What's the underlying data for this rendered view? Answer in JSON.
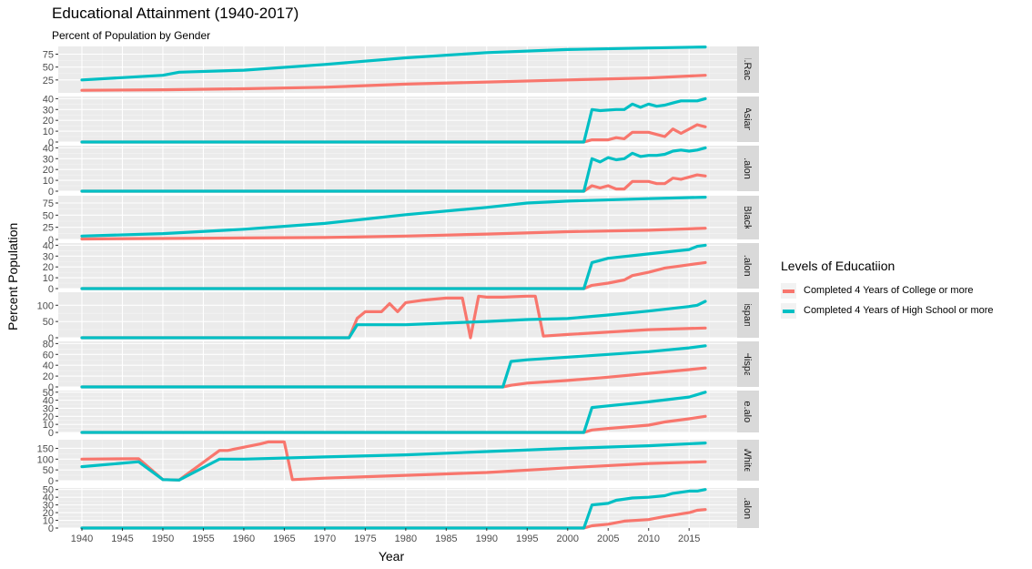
{
  "chart_data": {
    "type": "line",
    "title": "Educational Attainment (1940-2017)",
    "subtitle": "Percent of Population by Gender",
    "xlabel": "Year",
    "ylabel": "Percent Population",
    "xlim": [
      1940,
      2017
    ],
    "x_ticks": [
      1940,
      1945,
      1950,
      1955,
      1960,
      1965,
      1970,
      1975,
      1980,
      1985,
      1990,
      1995,
      2000,
      2005,
      2010,
      2015
    ],
    "legend": {
      "title": "Levels of Educatiion",
      "position": "right",
      "entries": [
        {
          "label": "Completed 4 Years of College or more",
          "color": "#F8766D"
        },
        {
          "label": "Completed 4 Years of High School or more",
          "color": "#00BFC4"
        }
      ]
    },
    "panels": [
      {
        "strip": "All.Races",
        "ylim": [
          0,
          90
        ],
        "yticks": [
          25,
          50,
          75
        ],
        "series": [
          {
            "name": "Completed 4 Years of College or more",
            "x": [
              1940,
              1950,
              1960,
              1970,
              1980,
              1990,
              2000,
              2010,
              2017
            ],
            "y": [
              5,
              6,
              8,
              11,
              17,
              21,
              25,
              29,
              34
            ]
          },
          {
            "name": "Completed 4 Years of High School or more",
            "x": [
              1940,
              1950,
              1952,
              1960,
              1970,
              1980,
              1990,
              2000,
              2010,
              2017
            ],
            "y": [
              25,
              34,
              40,
              44,
              55,
              68,
              78,
              84,
              87,
              89
            ]
          }
        ]
      },
      {
        "strip": "Asian",
        "ylim": [
          0,
          42
        ],
        "yticks": [
          0,
          10,
          20,
          30,
          40
        ],
        "series": [
          {
            "name": "Completed 4 Years of College or more",
            "x": [
              1940,
              2002,
              2003,
              2005,
              2006,
              2007,
              2008,
              2010,
              2011,
              2012,
              2013,
              2014,
              2016,
              2017
            ],
            "y": [
              0,
              0,
              2,
              2,
              4,
              3,
              9,
              9,
              7,
              5,
              12,
              8,
              16,
              14
            ]
          },
          {
            "name": "Completed 4 Years of High School or more",
            "x": [
              1940,
              2002,
              2003,
              2004,
              2006,
              2007,
              2008,
              2009,
              2010,
              2011,
              2012,
              2013,
              2014,
              2015,
              2016,
              2017
            ],
            "y": [
              0,
              0,
              30,
              29,
              30,
              30,
              35,
              32,
              35,
              33,
              34,
              36,
              38,
              38,
              38,
              40
            ]
          }
        ]
      },
      {
        "strip": "Asian.alone.or...",
        "ylim": [
          0,
          42
        ],
        "yticks": [
          0,
          10,
          20,
          30,
          40
        ],
        "series": [
          {
            "name": "Completed 4 Years of College or more",
            "x": [
              1940,
              2002,
              2003,
              2004,
              2005,
              2006,
              2007,
              2008,
              2010,
              2011,
              2012,
              2013,
              2014,
              2016,
              2017
            ],
            "y": [
              0,
              0,
              5,
              3,
              5,
              2,
              2,
              9,
              9,
              7,
              7,
              12,
              11,
              15,
              14
            ]
          },
          {
            "name": "Completed 4 Years of High School or more",
            "x": [
              1940,
              2002,
              2003,
              2004,
              2005,
              2006,
              2007,
              2008,
              2009,
              2010,
              2011,
              2012,
              2013,
              2014,
              2015,
              2016,
              2017
            ],
            "y": [
              0,
              0,
              30,
              27,
              31,
              29,
              30,
              35,
              32,
              33,
              33,
              34,
              37,
              38,
              37,
              38,
              40
            ]
          }
        ]
      },
      {
        "strip": "Black",
        "ylim": [
          0,
          90
        ],
        "yticks": [
          0,
          25,
          50,
          75
        ],
        "series": [
          {
            "name": "Completed 4 Years of College or more",
            "x": [
              1940,
              1960,
              1970,
              1980,
              1990,
              2000,
              2010,
              2017
            ],
            "y": [
              1,
              3,
              4,
              7,
              11,
              16,
              19,
              23
            ]
          },
          {
            "name": "Completed 4 Years of High School or more",
            "x": [
              1940,
              1950,
              1960,
              1970,
              1975,
              1980,
              1990,
              1995,
              2000,
              2010,
              2017
            ],
            "y": [
              7,
              12,
              21,
              33,
              42,
              51,
              66,
              75,
              79,
              84,
              87
            ]
          }
        ]
      },
      {
        "strip": "Black.alone.or...",
        "ylim": [
          0,
          42
        ],
        "yticks": [
          0,
          10,
          20,
          30,
          40
        ],
        "series": [
          {
            "name": "Completed 4 Years of College or more",
            "x": [
              1940,
              2002,
              2003,
              2005,
              2007,
              2008,
              2010,
              2012,
              2015,
              2017
            ],
            "y": [
              0,
              0,
              3,
              5,
              8,
              12,
              15,
              19,
              22,
              24
            ]
          },
          {
            "name": "Completed 4 Years of High School or more",
            "x": [
              1940,
              2002,
              2003,
              2005,
              2010,
              2015,
              2016,
              2017
            ],
            "y": [
              0,
              0,
              24,
              28,
              32,
              36,
              39,
              40
            ]
          }
        ]
      },
      {
        "strip": "Hispanic",
        "ylim": [
          0,
          140
        ],
        "yticks": [
          0,
          50,
          100
        ],
        "series": [
          {
            "name": "Completed 4 Years of College or more",
            "x": [
              1940,
              1973,
              1974,
              1975,
              1977,
              1978,
              1979,
              1980,
              1982,
              1985,
              1987,
              1988,
              1989,
              1990,
              1992,
              1995,
              1996,
              1997,
              2000,
              2010,
              2017
            ],
            "y": [
              0,
              0,
              60,
              80,
              80,
              105,
              80,
              108,
              115,
              122,
              122,
              0,
              128,
              125,
              125,
              128,
              128,
              5,
              10,
              25,
              30
            ]
          },
          {
            "name": "Completed 4 Years of High School or more",
            "x": [
              1940,
              1973,
              1974,
              1980,
              1985,
              1990,
              1995,
              2000,
              2005,
              2010,
              2015,
              2016,
              2017
            ],
            "y": [
              0,
              0,
              40,
              40,
              45,
              50,
              56,
              59,
              70,
              82,
              96,
              100,
              112
            ]
          }
        ]
      },
      {
        "strip": "Non.Hispanic...",
        "ylim": [
          0,
          84
        ],
        "yticks": [
          0,
          20,
          40,
          60,
          80
        ],
        "series": [
          {
            "name": "Completed 4 Years of College or more",
            "x": [
              1940,
              1992,
              1993,
              1995,
              2000,
              2005,
              2010,
              2015,
              2017
            ],
            "y": [
              0,
              0,
              3,
              7,
              12,
              18,
              25,
              32,
              35
            ]
          },
          {
            "name": "Completed 4 Years of High School or more",
            "x": [
              1940,
              1992,
              1993,
              1995,
              2000,
              2005,
              2010,
              2015,
              2017
            ],
            "y": [
              0,
              0,
              47,
              50,
              55,
              60,
              65,
              72,
              76
            ]
          }
        ]
      },
      {
        "strip": "White.alone...",
        "ylim": [
          0,
          52
        ],
        "yticks": [
          0,
          10,
          20,
          30,
          40,
          50
        ],
        "series": [
          {
            "name": "Completed 4 Years of College or more",
            "x": [
              1940,
              2002,
              2003,
              2005,
              2010,
              2012,
              2015,
              2017
            ],
            "y": [
              0,
              0,
              3,
              5,
              9,
              13,
              17,
              20
            ]
          },
          {
            "name": "Completed 4 Years of High School or more",
            "x": [
              1940,
              2002,
              2003,
              2005,
              2010,
              2015,
              2017
            ],
            "y": [
              0,
              0,
              31,
              33,
              38,
              44,
              50
            ]
          }
        ]
      },
      {
        "strip": "White",
        "ylim": [
          0,
          190
        ],
        "yticks": [
          0,
          50,
          100,
          150
        ],
        "series": [
          {
            "name": "Completed 4 Years of College or more",
            "x": [
              1940,
              1947,
              1950,
              1952,
              1957,
              1958,
              1962,
              1963,
              1965,
              1966,
              1970,
              1980,
              1990,
              2000,
              2010,
              2017
            ],
            "y": [
              100,
              102,
              5,
              3,
              140,
              140,
              170,
              180,
              180,
              5,
              12,
              25,
              38,
              60,
              80,
              88
            ]
          },
          {
            "name": "Completed 4 Years of High School or more",
            "x": [
              1940,
              1947,
              1950,
              1952,
              1957,
              1960,
              1970,
              1980,
              1990,
              2000,
              2010,
              2017
            ],
            "y": [
              65,
              88,
              5,
              3,
              100,
              100,
              110,
              120,
              135,
              150,
              162,
              175
            ]
          }
        ]
      },
      {
        "strip": "White.alone.or...",
        "ylim": [
          0,
          52
        ],
        "yticks": [
          0,
          10,
          20,
          30,
          40,
          50
        ],
        "series": [
          {
            "name": "Completed 4 Years of College or more",
            "x": [
              1940,
              2002,
              2003,
              2005,
              2007,
              2010,
              2012,
              2015,
              2016,
              2017
            ],
            "y": [
              0,
              0,
              3,
              5,
              9,
              11,
              15,
              20,
              23,
              24
            ]
          },
          {
            "name": "Completed 4 Years of High School or more",
            "x": [
              1940,
              2002,
              2003,
              2005,
              2006,
              2008,
              2010,
              2012,
              2013,
              2015,
              2016,
              2017
            ],
            "y": [
              0,
              0,
              30,
              32,
              36,
              39,
              40,
              42,
              45,
              48,
              48,
              50
            ]
          }
        ]
      }
    ]
  }
}
